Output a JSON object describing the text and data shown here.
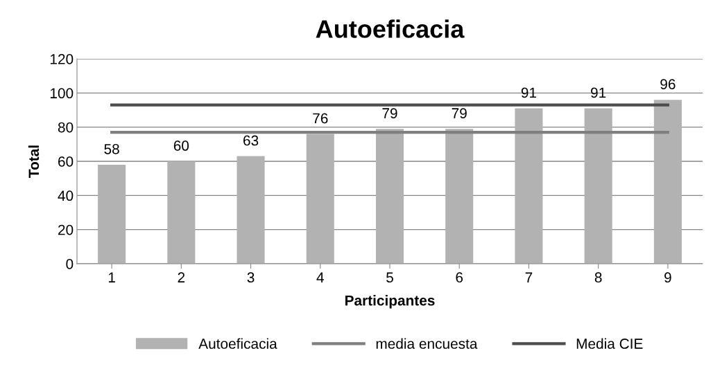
{
  "chart_data": {
    "type": "bar",
    "title": "Autoeficacia",
    "xlabel": "Participantes",
    "ylabel": "Total",
    "categories": [
      "1",
      "2",
      "3",
      "4",
      "5",
      "6",
      "7",
      "8",
      "9"
    ],
    "series": [
      {
        "name": "Autoeficacia",
        "color": "#b2b2b2",
        "values": [
          58,
          60,
          63,
          76,
          79,
          79,
          91,
          91,
          96
        ],
        "value_labels": [
          "58",
          "60",
          "63",
          "76",
          "79",
          "79",
          "91",
          "91",
          "96"
        ]
      },
      {
        "name": "media encuesta",
        "type": "line",
        "color": "#7f7f7f",
        "values": [
          77,
          77,
          77,
          77,
          77,
          77,
          77,
          77,
          77
        ]
      },
      {
        "name": "Media CIE",
        "type": "line",
        "color": "#4d4d4d",
        "values": [
          93,
          93,
          93,
          93,
          93,
          93,
          93,
          93,
          93
        ]
      }
    ],
    "ylim": [
      0,
      120
    ],
    "yticks": [
      0,
      20,
      40,
      60,
      80,
      100,
      120
    ],
    "grid": "y",
    "legend": "bottom",
    "marker": "none",
    "line_style": "solid"
  }
}
